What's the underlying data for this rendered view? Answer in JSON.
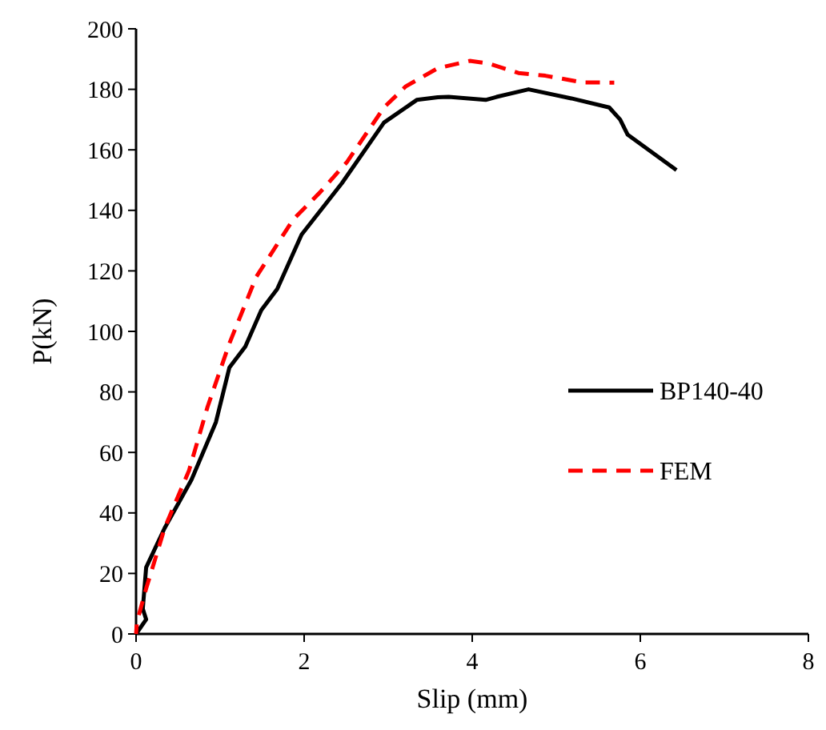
{
  "chart_data": {
    "type": "line",
    "xlabel": "Slip (mm)",
    "ylabel": "P(kN)",
    "xlim": [
      0,
      8
    ],
    "xticks": [
      0,
      2,
      4,
      6,
      8
    ],
    "ylim": [
      0,
      200
    ],
    "yticks": [
      0,
      20,
      40,
      60,
      80,
      100,
      120,
      140,
      160,
      180,
      200
    ],
    "grid": false,
    "legend": "right",
    "marker": "none",
    "series": [
      {
        "name": "BP140-40",
        "color": "#000000",
        "line_style": "solid",
        "x": [
          0,
          0.12,
          0.08,
          0.12,
          0.34,
          0.66,
          0.95,
          1.11,
          1.3,
          1.49,
          1.68,
          1.97,
          2.45,
          2.95,
          3.34,
          3.59,
          3.72,
          4.16,
          4.29,
          4.67,
          5.18,
          5.63,
          5.76,
          5.85,
          6.43
        ],
        "values": [
          0,
          4.8,
          8.3,
          22,
          35,
          51,
          70,
          88,
          95,
          107,
          114,
          132,
          149,
          169,
          176.5,
          177.4,
          177.5,
          176.5,
          177.5,
          180,
          177,
          174,
          170,
          165,
          153.3
        ]
      },
      {
        "name": "FEM",
        "color": "#ff0000",
        "line_style": "dashed",
        "x": [
          0,
          0.01,
          0.12,
          0.34,
          0.63,
          0.85,
          1.11,
          1.43,
          1.87,
          2.19,
          2.51,
          2.95,
          3.21,
          3.59,
          3.97,
          4.2,
          4.55,
          4.87,
          5.31,
          5.69
        ],
        "values": [
          0,
          3.9,
          15,
          35,
          54,
          75,
          96,
          118,
          137,
          146,
          156,
          174,
          181,
          187,
          189.4,
          188.5,
          185.4,
          184.5,
          182.3,
          182.2
        ]
      }
    ]
  }
}
